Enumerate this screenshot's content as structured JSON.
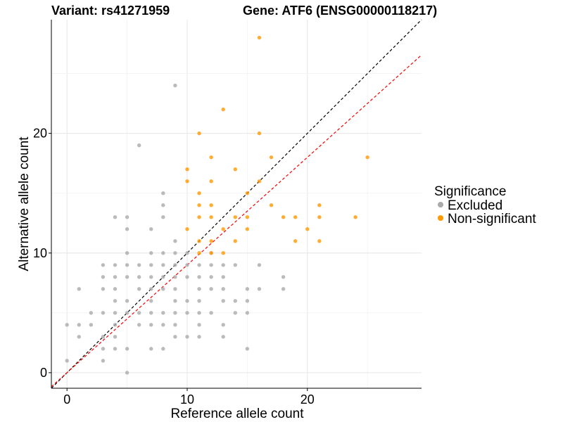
{
  "chart_data": {
    "type": "scatter",
    "title_left": "Variant: rs41271959",
    "title_right": "Gene: ATF6 (ENSG00000118217)",
    "xlabel": "Reference allele count",
    "ylabel": "Alternative allele count",
    "xlim": [
      -1.3,
      29.5
    ],
    "ylim": [
      -1.3,
      29.5
    ],
    "x_ticks": [
      0,
      10,
      20
    ],
    "y_ticks": [
      0,
      10,
      20
    ],
    "grid": true,
    "legend": {
      "title": "Significance",
      "position": "right",
      "entries": [
        {
          "label": "Excluded",
          "color": "#aaaaaa"
        },
        {
          "label": "Non-significant",
          "color": "#ff9900"
        }
      ]
    },
    "reference_lines": [
      {
        "slope": 1.0,
        "intercept": 0,
        "color": "#000000",
        "style": "dashed"
      },
      {
        "slope": 0.9,
        "intercept": 0,
        "color": "#ff0000",
        "style": "dashed"
      }
    ],
    "series": [
      {
        "name": "Excluded",
        "color": "#aaaaaa",
        "points": [
          [
            0,
            1
          ],
          [
            0,
            4
          ],
          [
            1,
            3
          ],
          [
            1,
            4
          ],
          [
            1,
            7
          ],
          [
            2,
            4
          ],
          [
            2,
            5
          ],
          [
            3,
            1
          ],
          [
            3,
            2
          ],
          [
            3,
            3
          ],
          [
            3,
            5
          ],
          [
            3,
            7
          ],
          [
            3,
            8
          ],
          [
            3,
            9
          ],
          [
            4,
            2
          ],
          [
            4,
            3
          ],
          [
            4,
            4
          ],
          [
            4,
            5
          ],
          [
            4,
            6
          ],
          [
            4,
            7
          ],
          [
            4,
            8
          ],
          [
            4,
            9
          ],
          [
            4,
            13
          ],
          [
            5,
            0
          ],
          [
            5,
            2
          ],
          [
            5,
            5
          ],
          [
            5,
            6
          ],
          [
            5,
            8
          ],
          [
            5,
            9
          ],
          [
            5,
            10
          ],
          [
            5,
            12
          ],
          [
            5,
            13
          ],
          [
            6,
            4
          ],
          [
            6,
            5
          ],
          [
            6,
            7
          ],
          [
            6,
            8
          ],
          [
            6,
            9
          ],
          [
            6,
            19
          ],
          [
            7,
            2
          ],
          [
            7,
            4
          ],
          [
            7,
            5
          ],
          [
            7,
            6
          ],
          [
            7,
            7
          ],
          [
            7,
            8
          ],
          [
            7,
            9
          ],
          [
            7,
            10
          ],
          [
            7,
            12
          ],
          [
            8,
            2
          ],
          [
            8,
            4
          ],
          [
            8,
            5
          ],
          [
            8,
            7
          ],
          [
            8,
            8
          ],
          [
            8,
            9
          ],
          [
            8,
            10
          ],
          [
            8,
            13
          ],
          [
            8,
            14
          ],
          [
            8,
            15
          ],
          [
            9,
            3
          ],
          [
            9,
            4
          ],
          [
            9,
            5
          ],
          [
            9,
            6
          ],
          [
            9,
            7
          ],
          [
            9,
            8
          ],
          [
            9,
            9
          ],
          [
            9,
            10
          ],
          [
            9,
            11
          ],
          [
            9,
            24
          ],
          [
            10,
            3
          ],
          [
            10,
            5
          ],
          [
            10,
            6
          ],
          [
            10,
            8
          ],
          [
            10,
            9
          ],
          [
            10,
            10
          ],
          [
            11,
            3
          ],
          [
            11,
            4
          ],
          [
            11,
            5
          ],
          [
            11,
            6
          ],
          [
            11,
            7
          ],
          [
            11,
            8
          ],
          [
            11,
            9
          ],
          [
            12,
            5
          ],
          [
            12,
            7
          ],
          [
            12,
            8
          ],
          [
            12,
            9
          ],
          [
            12,
            10
          ],
          [
            13,
            3
          ],
          [
            13,
            4
          ],
          [
            13,
            6
          ],
          [
            13,
            7
          ],
          [
            13,
            8
          ],
          [
            13,
            9
          ],
          [
            14,
            5
          ],
          [
            14,
            6
          ],
          [
            14,
            9
          ],
          [
            15,
            2
          ],
          [
            15,
            5
          ],
          [
            15,
            6
          ],
          [
            15,
            7
          ],
          [
            16,
            7
          ],
          [
            16,
            9
          ],
          [
            18,
            7
          ],
          [
            18,
            8
          ]
        ]
      },
      {
        "name": "Non-significant",
        "color": "#ff9900",
        "points": [
          [
            10,
            12
          ],
          [
            10,
            16
          ],
          [
            10,
            17
          ],
          [
            11,
            10
          ],
          [
            11,
            11
          ],
          [
            11,
            13
          ],
          [
            11,
            14
          ],
          [
            11,
            15
          ],
          [
            11,
            20
          ],
          [
            12,
            10
          ],
          [
            12,
            11
          ],
          [
            12,
            13
          ],
          [
            12,
            14
          ],
          [
            12,
            16
          ],
          [
            12,
            18
          ],
          [
            13,
            10
          ],
          [
            13,
            12
          ],
          [
            13,
            22
          ],
          [
            14,
            11
          ],
          [
            14,
            13
          ],
          [
            14,
            17
          ],
          [
            15,
            12
          ],
          [
            15,
            13
          ],
          [
            15,
            15
          ],
          [
            16,
            16
          ],
          [
            16,
            20
          ],
          [
            16,
            28
          ],
          [
            17,
            14
          ],
          [
            17,
            18
          ],
          [
            18,
            13
          ],
          [
            19,
            11
          ],
          [
            19,
            13
          ],
          [
            20,
            12
          ],
          [
            21,
            11
          ],
          [
            21,
            13
          ],
          [
            21,
            14
          ],
          [
            24,
            13
          ],
          [
            25,
            18
          ]
        ]
      }
    ]
  }
}
